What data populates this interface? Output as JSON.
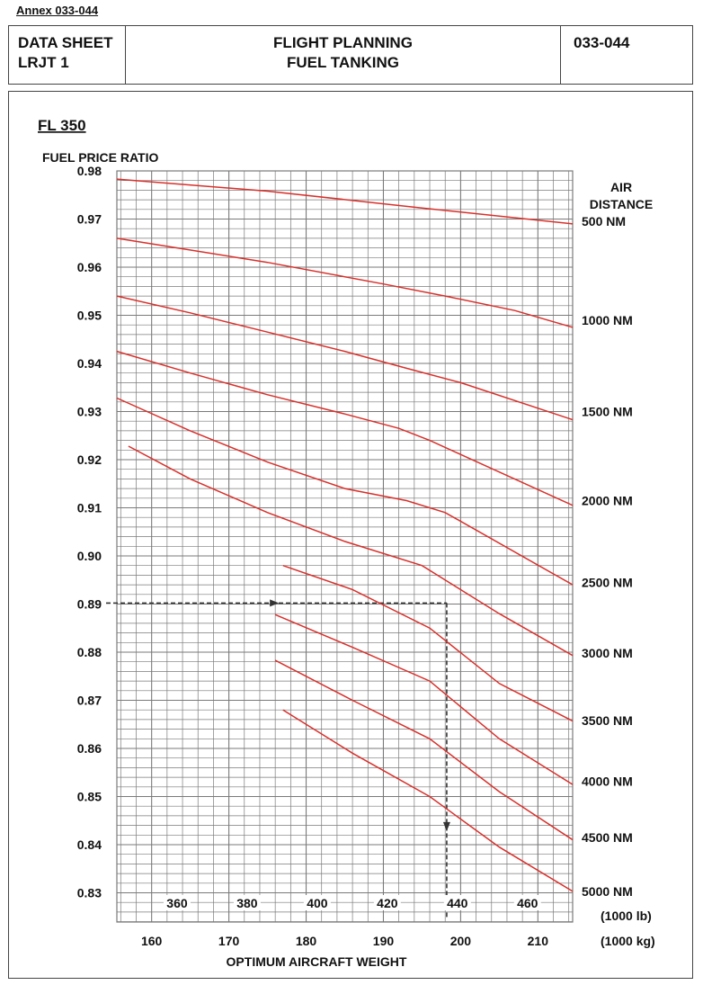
{
  "annex_label": "Annex 033-044",
  "header": {
    "left_line1": "DATA SHEET",
    "left_line2": "LRJT 1",
    "mid_line1": "FLIGHT PLANNING",
    "mid_line2": "FUEL TANKING",
    "right": "033-044"
  },
  "colors": {
    "curve": "#d9302b",
    "grid": "#7a7a7a",
    "frame": "#444444",
    "example": "#333333"
  },
  "chart_data": {
    "type": "line",
    "panel_title": "FL 350",
    "ylabel": "FUEL PRICE RATIO",
    "xlabel": "OPTIMUM AIRCRAFT WEIGHT",
    "right_title_line1": "AIR",
    "right_title_line2": "DISTANCE",
    "ylim": [
      0.83,
      0.98
    ],
    "yticks": [
      "0.98",
      "0.97",
      "0.96",
      "0.95",
      "0.94",
      "0.93",
      "0.92",
      "0.91",
      "0.90",
      "0.89",
      "0.88",
      "0.87",
      "0.86",
      "0.85",
      "0.84",
      "0.83"
    ],
    "x_kg_range": [
      155.5,
      214.5
    ],
    "x_kg_ticks": [
      "160",
      "170",
      "180",
      "190",
      "200",
      "210"
    ],
    "x_kg_unit": "(1000 kg)",
    "x_lb_ticks": [
      "360",
      "380",
      "400",
      "420",
      "440",
      "460"
    ],
    "x_lb_unit": "(1000 lb)",
    "grid": true,
    "series": [
      {
        "name": "500 NM",
        "x": [
          155.5,
          175,
          195,
          214.5
        ],
        "y": [
          0.9783,
          0.9758,
          0.9723,
          0.969
        ],
        "label_y": 0.9695
      },
      {
        "name": "",
        "x": [
          155.5,
          175,
          190,
          198,
          207,
          214.5
        ],
        "y": [
          0.966,
          0.961,
          0.9565,
          0.954,
          0.951,
          0.9475
        ],
        "label_y": null
      },
      {
        "name": "1000 NM",
        "x": [
          155.5,
          165,
          175,
          185,
          193,
          200,
          214.5
        ],
        "y": [
          0.954,
          0.9505,
          0.9465,
          0.9425,
          0.939,
          0.936,
          0.9283
        ],
        "label_y": 0.949
      },
      {
        "name": "1500 NM",
        "x": [
          155.5,
          165,
          175,
          185,
          192,
          196,
          214.5
        ],
        "y": [
          0.9425,
          0.938,
          0.9335,
          0.9295,
          0.9265,
          0.924,
          0.9105
        ],
        "label_y": 0.93
      },
      {
        "name": "2000 NM",
        "x": [
          155.5,
          165,
          175,
          185,
          193,
          198,
          214.5
        ],
        "y": [
          0.9328,
          0.926,
          0.9195,
          0.914,
          0.9115,
          0.909,
          0.894
        ],
        "label_y": 0.9115
      },
      {
        "name": "2500 NM",
        "x": [
          157,
          165,
          175,
          185,
          195,
          205,
          214.5
        ],
        "y": [
          0.9228,
          0.916,
          0.909,
          0.903,
          0.898,
          0.888,
          0.8793
        ],
        "label_y": 0.8945
      },
      {
        "name": "3000 NM",
        "x": [
          177,
          186,
          196,
          205,
          214.5
        ],
        "y": [
          0.898,
          0.893,
          0.885,
          0.8735,
          0.8657
        ],
        "label_y": 0.8798
      },
      {
        "name": "3500 NM",
        "x": [
          176,
          186,
          196,
          205,
          214.5
        ],
        "y": [
          0.8878,
          0.881,
          0.874,
          0.862,
          0.8525
        ],
        "label_y": 0.8658
      },
      {
        "name": "4000 NM",
        "x": [
          176,
          186,
          196,
          205,
          214.5
        ],
        "y": [
          0.8783,
          0.87,
          0.862,
          0.851,
          0.841
        ],
        "label_y": 0.8532
      },
      {
        "name": "4500 NM",
        "x": [
          177,
          186,
          196,
          205,
          214.5
        ],
        "y": [
          0.868,
          0.859,
          0.85,
          0.8395,
          0.8303
        ],
        "label_y": 0.8415
      },
      {
        "name": "5000 NM",
        "x": [],
        "y": [],
        "label_y": 0.8303
      }
    ],
    "example_path": {
      "from_ratio": 0.8902,
      "at_weight_kg": 198.2,
      "to_ratio": 0.8245
    }
  }
}
